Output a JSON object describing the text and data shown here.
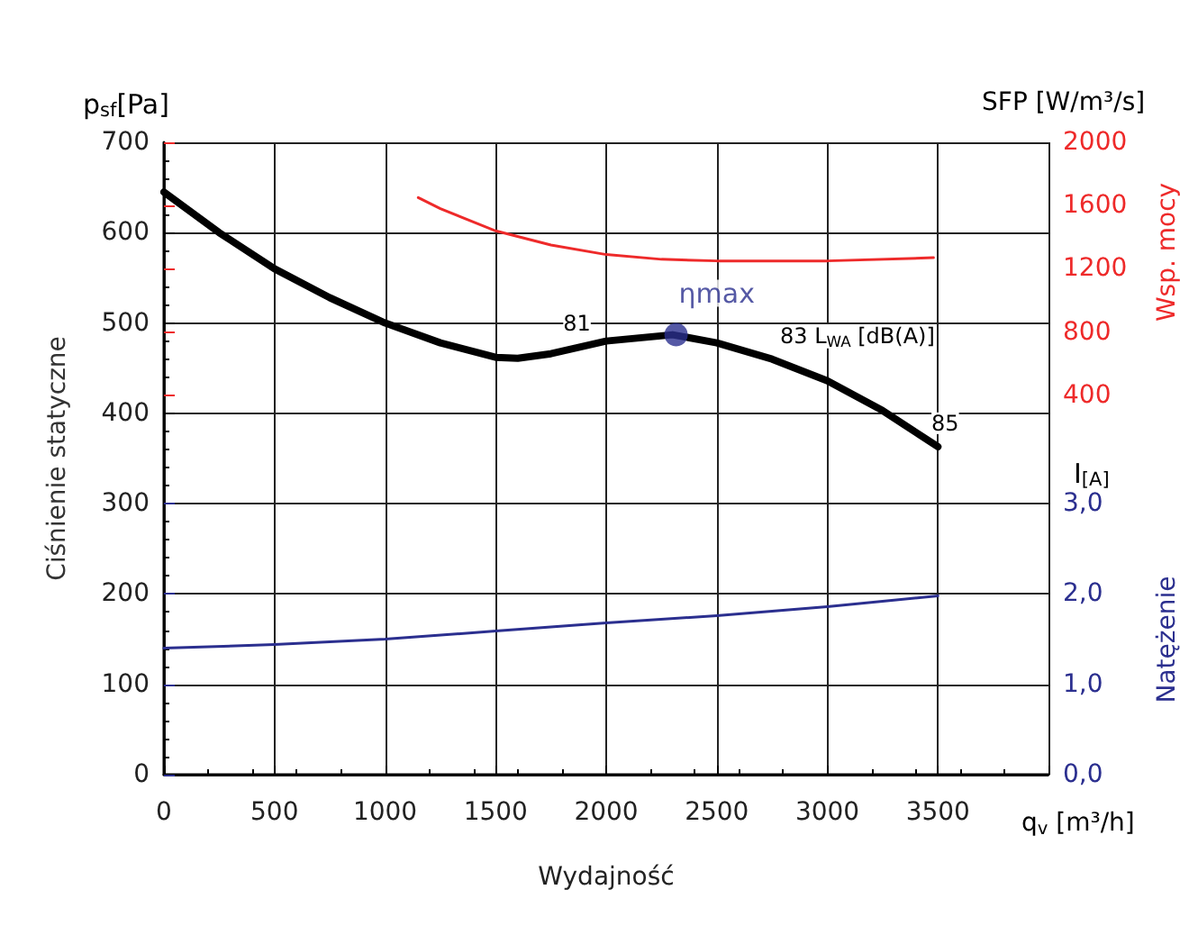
{
  "chart_data": {
    "type": "line",
    "xlabel": "Wydajność",
    "ylabel": "Ciśnienie statyczne",
    "y2label": "Wsp. mocy",
    "y3label": "Natężenie",
    "xlim": [
      0,
      4000
    ],
    "xticks": [
      0,
      500,
      1000,
      1500,
      2000,
      2500,
      3000,
      3500
    ],
    "ylim": [
      0,
      700
    ],
    "yticks": [
      0,
      100,
      200,
      300,
      400,
      500,
      600,
      700
    ],
    "y2lim": [
      -2000,
      2000
    ],
    "y2ticks": [
      400,
      800,
      1200,
      1600,
      2000
    ],
    "y3lim": [
      0,
      7
    ],
    "y3ticks": [
      {
        "value": 0,
        "label": "0,0"
      },
      {
        "value": 1,
        "label": "1,0"
      },
      {
        "value": 2,
        "label": "2,0"
      },
      {
        "value": 3,
        "label": "3,0"
      }
    ],
    "grid": true,
    "marker": "none",
    "series": [
      {
        "color": "#000000",
        "x": [
          0,
          250,
          500,
          750,
          1000,
          1250,
          1500,
          1600,
          1750,
          2000,
          2300,
          2500,
          2750,
          3000,
          3250,
          3500
        ],
        "values": [
          645,
          600,
          560,
          528,
          500,
          478,
          462,
          461,
          466,
          480,
          487,
          478,
          460,
          436,
          403,
          363
        ]
      },
      {
        "color": "#ee2a2a",
        "axis": "y2",
        "x": [
          1150,
          1250,
          1500,
          1750,
          2000,
          2250,
          2500,
          3000,
          3480
        ],
        "values": [
          1650,
          1580,
          1440,
          1350,
          1290,
          1260,
          1250,
          1250,
          1270
        ]
      },
      {
        "color": "#2b2f8f",
        "axis": "y3",
        "x": [
          0,
          500,
          1000,
          1500,
          2000,
          2500,
          3000,
          3500
        ],
        "values": [
          1.4,
          1.44,
          1.5,
          1.59,
          1.68,
          1.76,
          1.86,
          1.98
        ]
      },
      {
        "type": "scatter",
        "name": "ηmax",
        "marker": "circle",
        "color": "#2b2f8f",
        "x": [
          2316
        ],
        "values": [
          487
        ]
      }
    ],
    "annotations": [
      "p$_{sf}$[Pa]",
      "SFP [W/m³/s]",
      "I$_{[A]}$",
      "q$_{v}$ [m³/h]",
      {
        "text": "81",
        "x": 1868,
        "y": 500
      },
      "83 L$_{WA}$ [dB(A)]",
      {
        "text": "85",
        "x": 3533,
        "y": 389
      }
    ]
  }
}
